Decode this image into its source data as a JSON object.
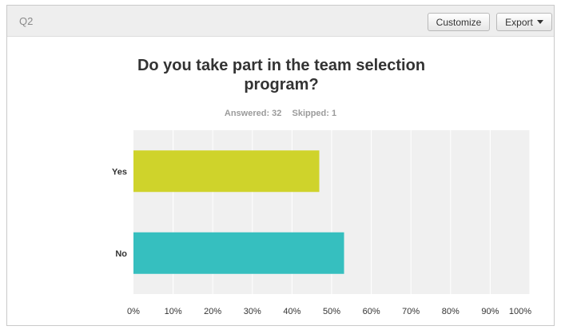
{
  "header": {
    "question_id": "Q2",
    "customize_label": "Customize",
    "export_label": "Export"
  },
  "title_line1": "Do you take part in the team selection",
  "title_line2": "program?",
  "stats": {
    "answered": "Answered: 32",
    "skipped": "Skipped: 1"
  },
  "colors": {
    "yes": "#cfd32b",
    "no": "#36bfbf",
    "plot_bg": "#f0f0f0",
    "gridline": "#ffffff"
  },
  "chart_data": {
    "type": "bar",
    "orientation": "horizontal",
    "title": "Do you take part in the team selection program?",
    "categories": [
      "Yes",
      "No"
    ],
    "values": [
      46.88,
      53.13
    ],
    "xlabel": "",
    "ylabel": "",
    "xlim": [
      0,
      100
    ],
    "x_ticks": [
      "0%",
      "10%",
      "20%",
      "30%",
      "40%",
      "50%",
      "60%",
      "70%",
      "80%",
      "90%",
      "100%"
    ],
    "grid": true,
    "legend": "none"
  }
}
